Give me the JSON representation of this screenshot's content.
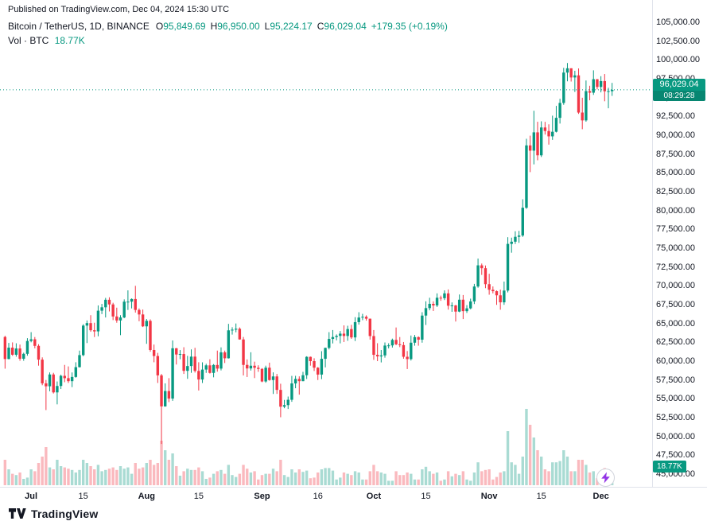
{
  "header": {
    "published": "Published on TradingView.com, Dec 04, 2024 15:30 UTC",
    "symbol": "Bitcoin / TetherUS, 1D, BINANCE",
    "ohlc": {
      "o_label": "O",
      "o_value": "95,849.69",
      "h_label": "H",
      "h_value": "96,950.00",
      "l_label": "L",
      "l_value": "95,224.17",
      "c_label": "C",
      "c_value": "96,029.04",
      "change": "+179.35 (+0.19%)"
    },
    "volume_row": {
      "label": "Vol · BTC",
      "value": "18.77K"
    }
  },
  "badges": {
    "last_price": {
      "price": "96,029.04",
      "countdown": "08:29:28"
    },
    "volume": "18.77K"
  },
  "footer": {
    "brand": "TradingView"
  },
  "colors": {
    "up": "#089981",
    "down": "#f23645",
    "volume_up": "rgba(8,153,129,0.35)",
    "volume_down": "rgba(242,54,69,0.35)",
    "text": "#131722",
    "axis_line": "#e0e3eb",
    "badge_bg": "#089981",
    "lightning": "#9334e6"
  },
  "chart_data": {
    "type": "candlestick",
    "title": "Bitcoin / TetherUS, 1D, BINANCE",
    "grid": false,
    "legend": false,
    "volume_unit": "K BTC",
    "last_price": 96029.04,
    "price_axis": {
      "min": 45000,
      "max": 105000,
      "tick_step": 2500
    },
    "price_axis_labels": [
      "105,000.00",
      "102,500.00",
      "100,000.00",
      "97,500.00",
      "95,000.00",
      "92,500.00",
      "90,000.00",
      "87,500.00",
      "85,000.00",
      "82,500.00",
      "80,000.00",
      "77,500.00",
      "75,000.00",
      "72,500.00",
      "70,000.00",
      "67,500.00",
      "65,000.00",
      "62,500.00",
      "60,000.00",
      "57,500.00",
      "55,000.00",
      "52,500.00",
      "50,000.00",
      "47,500.00",
      "45,000.00"
    ],
    "time_ticks": [
      {
        "i": 7,
        "label": "Jul"
      },
      {
        "i": 21,
        "label": "15"
      },
      {
        "i": 38,
        "label": "Aug"
      },
      {
        "i": 52,
        "label": "15"
      },
      {
        "i": 69,
        "label": "Sep"
      },
      {
        "i": 84,
        "label": "16"
      },
      {
        "i": 99,
        "label": "Oct"
      },
      {
        "i": 113,
        "label": "15"
      },
      {
        "i": 130,
        "label": "Nov"
      },
      {
        "i": 144,
        "label": "15"
      },
      {
        "i": 160,
        "label": "Dec"
      }
    ],
    "candles_format": [
      "open",
      "high",
      "low",
      "close",
      "volume_kBTC"
    ],
    "candles": [
      [
        63210,
        63370,
        59000,
        60280,
        40
      ],
      [
        60280,
        62420,
        60240,
        61790,
        25
      ],
      [
        61790,
        62490,
        60700,
        60850,
        18
      ],
      [
        60850,
        62370,
        60590,
        61680,
        16
      ],
      [
        61680,
        62200,
        60050,
        60320,
        20
      ],
      [
        60320,
        61120,
        60050,
        60970,
        10
      ],
      [
        60970,
        63050,
        60720,
        62680,
        12
      ],
      [
        62680,
        63850,
        62500,
        62900,
        25
      ],
      [
        62900,
        63200,
        61700,
        62030,
        22
      ],
      [
        62030,
        62250,
        59400,
        60200,
        35
      ],
      [
        60200,
        60500,
        56800,
        57050,
        45
      ],
      [
        57050,
        57500,
        53500,
        56660,
        60
      ],
      [
        56660,
        58500,
        56000,
        58230,
        28
      ],
      [
        58230,
        58450,
        55700,
        55850,
        25
      ],
      [
        55850,
        57300,
        54260,
        56700,
        40
      ],
      [
        56700,
        58200,
        56300,
        58050,
        30
      ],
      [
        58050,
        59500,
        57200,
        57740,
        28
      ],
      [
        57740,
        59300,
        57100,
        57340,
        26
      ],
      [
        57340,
        58500,
        56550,
        57900,
        24
      ],
      [
        57900,
        59850,
        57800,
        59200,
        20
      ],
      [
        59200,
        61400,
        59150,
        60800,
        24
      ],
      [
        60800,
        64900,
        60650,
        64720,
        40
      ],
      [
        64720,
        65400,
        62400,
        65050,
        35
      ],
      [
        65050,
        66100,
        63900,
        64100,
        30
      ],
      [
        64100,
        65100,
        63200,
        63950,
        25
      ],
      [
        63950,
        67400,
        63300,
        66700,
        32
      ],
      [
        66700,
        67600,
        66250,
        67150,
        22
      ],
      [
        67150,
        68400,
        65800,
        68150,
        24
      ],
      [
        68150,
        68480,
        66600,
        67530,
        26
      ],
      [
        67530,
        67750,
        65450,
        65930,
        28
      ],
      [
        65930,
        67100,
        65100,
        65400,
        24
      ],
      [
        65400,
        66100,
        63450,
        65800,
        30
      ],
      [
        65800,
        68200,
        65700,
        67900,
        26
      ],
      [
        67900,
        69400,
        66800,
        67900,
        28
      ],
      [
        67900,
        68330,
        67000,
        68250,
        18
      ],
      [
        68250,
        70000,
        66450,
        66800,
        35
      ],
      [
        66800,
        67000,
        65300,
        66200,
        26
      ],
      [
        66200,
        66850,
        64530,
        64620,
        28
      ],
      [
        64620,
        65600,
        62300,
        65350,
        35
      ],
      [
        65350,
        65550,
        61250,
        61480,
        40
      ],
      [
        61480,
        62200,
        59850,
        60680,
        32
      ],
      [
        60680,
        61100,
        57100,
        58110,
        35
      ],
      [
        58110,
        58300,
        49000,
        53990,
        70
      ],
      [
        53990,
        57050,
        53950,
        56030,
        55
      ],
      [
        56030,
        57740,
        54560,
        55030,
        40
      ],
      [
        55030,
        62750,
        54730,
        61710,
        50
      ],
      [
        61710,
        61750,
        59550,
        60880,
        30
      ],
      [
        60880,
        61470,
        60250,
        60945,
        15
      ],
      [
        60945,
        61850,
        58300,
        58710,
        22
      ],
      [
        58710,
        60700,
        57650,
        59350,
        26
      ],
      [
        59350,
        61560,
        58450,
        60600,
        24
      ],
      [
        60600,
        61770,
        58480,
        58700,
        24
      ],
      [
        58700,
        59850,
        56100,
        57560,
        28
      ],
      [
        57560,
        59840,
        57100,
        58880,
        22
      ],
      [
        58880,
        59650,
        58440,
        59440,
        10
      ],
      [
        59440,
        60250,
        58350,
        58440,
        12
      ],
      [
        58440,
        59610,
        57850,
        59490,
        18
      ],
      [
        59490,
        61400,
        58600,
        59010,
        22
      ],
      [
        59010,
        61830,
        58770,
        61170,
        24
      ],
      [
        61170,
        61400,
        59750,
        60380,
        18
      ],
      [
        60380,
        64950,
        60340,
        64090,
        32
      ],
      [
        64090,
        64500,
        63530,
        64180,
        16
      ],
      [
        64180,
        65000,
        63830,
        64300,
        13
      ],
      [
        64300,
        64480,
        62850,
        62880,
        18
      ],
      [
        62880,
        63210,
        58100,
        59500,
        32
      ],
      [
        59500,
        60230,
        57890,
        59030,
        26
      ],
      [
        59030,
        61180,
        58750,
        59390,
        20
      ],
      [
        59390,
        59930,
        57750,
        59120,
        22
      ],
      [
        59120,
        59450,
        58580,
        58970,
        9
      ],
      [
        58970,
        59070,
        57200,
        57300,
        16
      ],
      [
        57300,
        59400,
        57130,
        59130,
        18
      ],
      [
        59130,
        59800,
        57400,
        57490,
        18
      ],
      [
        57490,
        58510,
        55640,
        57970,
        26
      ],
      [
        57970,
        58300,
        55650,
        56180,
        22
      ],
      [
        56180,
        57000,
        52550,
        53950,
        40
      ],
      [
        53950,
        54850,
        53750,
        54160,
        16
      ],
      [
        54160,
        55300,
        53650,
        54870,
        13
      ],
      [
        54870,
        58040,
        54600,
        57040,
        25
      ],
      [
        57040,
        58050,
        56400,
        57640,
        20
      ],
      [
        57640,
        57980,
        55550,
        57340,
        25
      ],
      [
        57340,
        58580,
        57330,
        58130,
        21
      ],
      [
        58130,
        60650,
        57630,
        60570,
        23
      ],
      [
        60570,
        60610,
        59400,
        60000,
        11
      ],
      [
        60000,
        60380,
        58690,
        59130,
        12
      ],
      [
        59130,
        59210,
        57490,
        58215,
        20
      ],
      [
        58215,
        61320,
        57610,
        60310,
        25
      ],
      [
        60310,
        61790,
        59170,
        61760,
        27
      ],
      [
        61760,
        63850,
        61560,
        62950,
        27
      ],
      [
        62950,
        64130,
        62350,
        63200,
        23
      ],
      [
        63200,
        63550,
        62760,
        63350,
        9
      ],
      [
        63350,
        64000,
        62360,
        63650,
        12
      ],
      [
        63650,
        64750,
        62540,
        63340,
        20
      ],
      [
        63340,
        64700,
        62700,
        64260,
        18
      ],
      [
        64260,
        64820,
        62960,
        63150,
        16
      ],
      [
        63150,
        65840,
        62670,
        65180,
        22
      ],
      [
        65180,
        66500,
        64850,
        65790,
        20
      ],
      [
        65790,
        66280,
        65440,
        65890,
        9
      ],
      [
        65890,
        66080,
        65380,
        65640,
        9
      ],
      [
        65640,
        65650,
        62860,
        63330,
        22
      ],
      [
        63330,
        64130,
        60170,
        60840,
        32
      ],
      [
        60840,
        62380,
        60000,
        60630,
        22
      ],
      [
        60630,
        61480,
        59830,
        60760,
        20
      ],
      [
        60760,
        62480,
        60460,
        62070,
        18
      ],
      [
        62070,
        62370,
        61690,
        62090,
        7
      ],
      [
        62090,
        62990,
        61800,
        62820,
        7
      ],
      [
        62820,
        64470,
        62120,
        62240,
        22
      ],
      [
        62240,
        63200,
        61860,
        62130,
        16
      ],
      [
        62130,
        62540,
        60320,
        60580,
        16
      ],
      [
        60580,
        61340,
        58950,
        60270,
        20
      ],
      [
        60270,
        63400,
        60080,
        62450,
        18
      ],
      [
        62450,
        63480,
        62050,
        63190,
        9
      ],
      [
        63190,
        63290,
        62050,
        62850,
        9
      ],
      [
        62850,
        66500,
        62450,
        66050,
        25
      ],
      [
        66050,
        67950,
        64800,
        67040,
        29
      ],
      [
        67040,
        68420,
        66750,
        67610,
        22
      ],
      [
        67610,
        67940,
        66660,
        67400,
        18
      ],
      [
        67400,
        69000,
        67190,
        68420,
        20
      ],
      [
        68420,
        68700,
        68010,
        68360,
        7
      ],
      [
        68360,
        69400,
        68110,
        69000,
        9
      ],
      [
        69000,
        69520,
        66840,
        67360,
        22
      ],
      [
        67360,
        67800,
        66550,
        67400,
        14
      ],
      [
        67400,
        67470,
        65260,
        66580,
        18
      ],
      [
        66580,
        68850,
        66500,
        68160,
        16
      ],
      [
        68160,
        68780,
        65590,
        66640,
        22
      ],
      [
        66640,
        67440,
        66400,
        67010,
        9
      ],
      [
        67010,
        68300,
        66880,
        67930,
        7
      ],
      [
        67930,
        70260,
        67580,
        69910,
        20
      ],
      [
        69910,
        73620,
        69750,
        72720,
        36
      ],
      [
        72720,
        72960,
        71450,
        72340,
        22
      ],
      [
        72340,
        72700,
        69690,
        70220,
        24
      ],
      [
        70220,
        71600,
        68820,
        69480,
        25
      ],
      [
        69480,
        69920,
        69000,
        69290,
        9
      ],
      [
        69290,
        69390,
        67480,
        68740,
        13
      ],
      [
        68740,
        69500,
        66830,
        67810,
        20
      ],
      [
        67810,
        70570,
        67480,
        69370,
        22
      ],
      [
        69370,
        76460,
        69130,
        75570,
        85
      ],
      [
        75570,
        76400,
        74400,
        75860,
        36
      ],
      [
        75860,
        77250,
        75560,
        76510,
        32
      ],
      [
        76510,
        77300,
        75710,
        76680,
        18
      ],
      [
        76680,
        81500,
        76500,
        80370,
        45
      ],
      [
        80370,
        89530,
        80220,
        88650,
        120
      ],
      [
        88650,
        89940,
        85100,
        87950,
        95
      ],
      [
        87950,
        93250,
        86130,
        90380,
        75
      ],
      [
        90380,
        91790,
        86670,
        87330,
        55
      ],
      [
        87330,
        91850,
        87110,
        91030,
        45
      ],
      [
        91030,
        91780,
        90090,
        90560,
        25
      ],
      [
        90560,
        91450,
        88750,
        89850,
        22
      ],
      [
        89850,
        92600,
        89380,
        90460,
        36
      ],
      [
        90460,
        93900,
        90370,
        92310,
        36
      ],
      [
        92310,
        94840,
        91550,
        94290,
        38
      ],
      [
        94290,
        98950,
        94040,
        98320,
        55
      ],
      [
        98320,
        99590,
        97160,
        98890,
        45
      ],
      [
        98890,
        98890,
        97130,
        97670,
        22
      ],
      [
        97670,
        98560,
        95750,
        97950,
        22
      ],
      [
        97950,
        98870,
        92830,
        93010,
        40
      ],
      [
        93010,
        94980,
        90800,
        91970,
        40
      ],
      [
        91970,
        97270,
        91790,
        95860,
        32
      ],
      [
        95860,
        96570,
        94640,
        95650,
        20
      ],
      [
        95650,
        98620,
        95360,
        97440,
        22
      ],
      [
        97440,
        97460,
        96090,
        96410,
        11
      ],
      [
        96410,
        97840,
        95690,
        97190,
        14
      ],
      [
        97190,
        98130,
        94510,
        95840,
        27
      ],
      [
        95840,
        96300,
        93580,
        95850,
        25
      ],
      [
        95849.69,
        96950,
        95224.17,
        96029.04,
        18.77
      ]
    ]
  }
}
